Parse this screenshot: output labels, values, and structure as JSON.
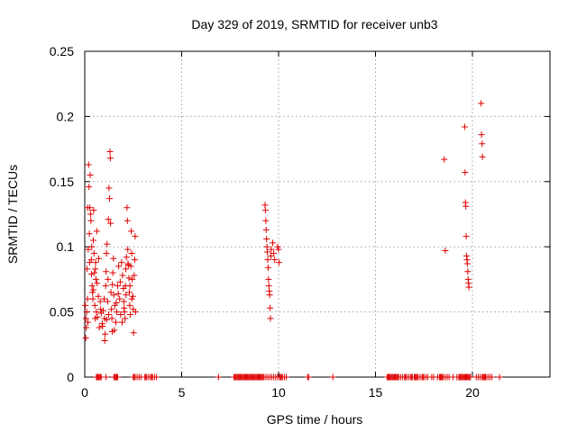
{
  "chart_data": {
    "type": "scatter",
    "title": "Day 329 of 2019, SRMTID for receiver unb3",
    "xlabel": "GPS time / hours",
    "ylabel": "SRMTID / TECUs",
    "xlim": [
      0,
      24
    ],
    "ylim": [
      0,
      0.25
    ],
    "xticks": [
      0,
      5,
      10,
      15,
      20
    ],
    "xtick_labels": [
      "0",
      "5",
      "10",
      "15",
      "20"
    ],
    "yticks": [
      0,
      0.05,
      0.1,
      0.15,
      0.2,
      0.25
    ],
    "ytick_labels": [
      "0",
      "0.05",
      "0.1",
      "0.15",
      "0.2",
      "0.25"
    ],
    "grid": true,
    "marker": "+",
    "color": "#e00000",
    "series": [
      {
        "name": "SRMTID",
        "points": [
          [
            0.03,
            0.055
          ],
          [
            0.05,
            0.03
          ],
          [
            0.06,
            0.045
          ],
          [
            0.08,
            0.038
          ],
          [
            0.1,
            0.05
          ],
          [
            0.12,
            0.083
          ],
          [
            0.14,
            0.06
          ],
          [
            0.16,
            0.042
          ],
          [
            0.18,
            0.098
          ],
          [
            0.2,
            0.163
          ],
          [
            0.22,
            0.146
          ],
          [
            0.24,
            0.11
          ],
          [
            0.26,
            0.13
          ],
          [
            0.28,
            0.155
          ],
          [
            0.3,
            0.125
          ],
          [
            0.32,
            0.12
          ],
          [
            0.34,
            0.09
          ],
          [
            0.36,
            0.1
          ],
          [
            0.38,
            0.07
          ],
          [
            0.4,
            0.065
          ],
          [
            0.42,
            0.06
          ],
          [
            0.44,
            0.105
          ],
          [
            0.46,
            0.128
          ],
          [
            0.48,
            0.095
          ],
          [
            0.5,
            0.08
          ],
          [
            0.52,
            0.055
          ],
          [
            0.54,
            0.045
          ],
          [
            0.56,
            0.088
          ],
          [
            0.58,
            0.075
          ],
          [
            0.6,
            0.05
          ],
          [
            0.62,
            0.112
          ],
          [
            0.64,
            0.072
          ],
          [
            0.7,
            0.062
          ],
          [
            0.75,
            0.038
          ],
          [
            0.8,
            0.058
          ],
          [
            0.85,
            0.049
          ],
          [
            0.9,
            0.041
          ],
          [
            0.95,
            0.051
          ],
          [
            1.0,
            0.06
          ],
          [
            1.02,
            0.045
          ],
          [
            1.05,
            0.033
          ],
          [
            1.08,
            0.07
          ],
          [
            1.1,
            0.081
          ],
          [
            1.12,
            0.095
          ],
          [
            1.15,
            0.102
          ],
          [
            1.18,
            0.058
          ],
          [
            1.2,
            0.075
          ],
          [
            1.22,
            0.121
          ],
          [
            1.25,
            0.145
          ],
          [
            1.28,
            0.137
          ],
          [
            1.3,
            0.173
          ],
          [
            1.32,
            0.168
          ],
          [
            1.35,
            0.065
          ],
          [
            1.38,
            0.052
          ],
          [
            1.4,
            0.045
          ],
          [
            1.42,
            0.035
          ],
          [
            1.45,
            0.08
          ],
          [
            1.48,
            0.091
          ],
          [
            1.5,
            0.063
          ],
          [
            1.55,
            0.055
          ],
          [
            1.6,
            0.042
          ],
          [
            1.65,
            0.05
          ],
          [
            1.7,
            0.07
          ],
          [
            1.75,
            0.085
          ],
          [
            1.8,
            0.06
          ],
          [
            1.85,
            0.048
          ],
          [
            1.9,
            0.088
          ],
          [
            1.95,
            0.078
          ],
          [
            2.0,
            0.068
          ],
          [
            2.02,
            0.058
          ],
          [
            2.05,
            0.05
          ],
          [
            2.08,
            0.045
          ],
          [
            2.1,
            0.07
          ],
          [
            2.12,
            0.083
          ],
          [
            2.15,
            0.092
          ],
          [
            2.18,
            0.13
          ],
          [
            2.2,
            0.12
          ],
          [
            2.22,
            0.098
          ],
          [
            2.25,
            0.086
          ],
          [
            2.28,
            0.076
          ],
          [
            2.3,
            0.065
          ],
          [
            2.32,
            0.055
          ],
          [
            2.35,
            0.048
          ],
          [
            2.38,
            0.085
          ],
          [
            2.4,
            0.112
          ],
          [
            2.42,
            0.095
          ],
          [
            2.45,
            0.075
          ],
          [
            2.48,
            0.062
          ],
          [
            2.5,
            0.052
          ],
          [
            2.52,
            0.034
          ],
          [
            2.55,
            0.078
          ],
          [
            2.58,
            0.09
          ],
          [
            2.6,
            0.108
          ],
          [
            2.62,
            0.05
          ],
          [
            0.15,
            0.13
          ],
          [
            0.25,
            0.088
          ],
          [
            0.35,
            0.079
          ],
          [
            0.45,
            0.067
          ],
          [
            0.55,
            0.083
          ],
          [
            0.65,
            0.046
          ],
          [
            0.72,
            0.091
          ],
          [
            0.82,
            0.052
          ],
          [
            0.92,
            0.039
          ],
          [
            1.03,
            0.028
          ],
          [
            1.13,
            0.044
          ],
          [
            1.23,
            0.048
          ],
          [
            1.33,
            0.118
          ],
          [
            1.43,
            0.071
          ],
          [
            1.53,
            0.036
          ],
          [
            1.63,
            0.057
          ],
          [
            1.73,
            0.064
          ],
          [
            1.83,
            0.073
          ],
          [
            1.93,
            0.042
          ],
          [
            2.03,
            0.053
          ],
          [
            2.13,
            0.063
          ],
          [
            2.23,
            0.087
          ],
          [
            2.33,
            0.07
          ],
          [
            2.43,
            0.06
          ],
          [
            9.3,
            0.132
          ],
          [
            9.32,
            0.128
          ],
          [
            9.34,
            0.12
          ],
          [
            9.36,
            0.113
          ],
          [
            9.38,
            0.106
          ],
          [
            9.4,
            0.1
          ],
          [
            9.42,
            0.096
          ],
          [
            9.44,
            0.09
          ],
          [
            9.46,
            0.084
          ],
          [
            9.48,
            0.075
          ],
          [
            9.5,
            0.07
          ],
          [
            9.52,
            0.066
          ],
          [
            9.54,
            0.063
          ],
          [
            9.56,
            0.053
          ],
          [
            9.58,
            0.045
          ],
          [
            9.6,
            0.093
          ],
          [
            9.62,
            0.098
          ],
          [
            9.7,
            0.103
          ],
          [
            9.75,
            0.095
          ],
          [
            9.8,
            0.09
          ],
          [
            9.95,
            0.1
          ],
          [
            10.0,
            0.098
          ],
          [
            10.02,
            0.088
          ],
          [
            18.55,
            0.167
          ],
          [
            18.6,
            0.097
          ],
          [
            19.6,
            0.192
          ],
          [
            19.62,
            0.157
          ],
          [
            19.64,
            0.134
          ],
          [
            19.66,
            0.131
          ],
          [
            19.68,
            0.108
          ],
          [
            19.7,
            0.093
          ],
          [
            19.72,
            0.09
          ],
          [
            19.74,
            0.087
          ],
          [
            19.76,
            0.081
          ],
          [
            19.78,
            0.075
          ],
          [
            19.8,
            0.072
          ],
          [
            19.82,
            0.069
          ],
          [
            20.45,
            0.21
          ],
          [
            20.47,
            0.186
          ],
          [
            20.5,
            0.179
          ],
          [
            20.52,
            0.169
          ]
        ],
        "zero_points": [
          0.6,
          0.65,
          0.7,
          0.75,
          0.8,
          0.85,
          1.1,
          1.5,
          1.55,
          1.6,
          1.65,
          1.7,
          2.5,
          2.55,
          2.6,
          2.7,
          2.8,
          2.9,
          3.1,
          3.15,
          3.2,
          3.3,
          3.4,
          3.45,
          3.5,
          3.6,
          3.7,
          6.9,
          7.7,
          7.75,
          7.8,
          7.85,
          7.9,
          7.95,
          8.0,
          8.05,
          8.1,
          8.15,
          8.2,
          8.25,
          8.3,
          8.35,
          8.4,
          8.45,
          8.5,
          8.55,
          8.6,
          8.65,
          8.7,
          8.75,
          8.8,
          8.85,
          8.9,
          8.95,
          9.0,
          9.05,
          9.1,
          9.15,
          9.2,
          9.25,
          9.35,
          9.45,
          9.55,
          9.65,
          9.75,
          9.85,
          9.95,
          10.05,
          10.1,
          10.15,
          10.2,
          10.3,
          10.4,
          11.5,
          11.55,
          12.8,
          15.6,
          15.65,
          15.7,
          15.75,
          15.8,
          15.85,
          15.9,
          15.95,
          16.0,
          16.05,
          16.1,
          16.15,
          16.2,
          16.3,
          16.4,
          16.5,
          16.55,
          16.6,
          16.7,
          16.8,
          16.85,
          16.9,
          17.0,
          17.05,
          17.1,
          17.15,
          17.2,
          17.3,
          17.4,
          17.45,
          17.5,
          17.6,
          17.7,
          17.9,
          18.0,
          18.2,
          18.3,
          18.35,
          18.4,
          18.45,
          18.5,
          18.6,
          18.7,
          18.8,
          19.0,
          19.2,
          19.3,
          19.35,
          19.4,
          19.45,
          19.5,
          19.55,
          19.6,
          19.65,
          19.7,
          19.75,
          19.8,
          19.85,
          19.9,
          20.2,
          20.3,
          20.4,
          20.5,
          20.55,
          20.6,
          20.65,
          20.7,
          20.8,
          20.9,
          21.0,
          21.4
        ]
      }
    ]
  }
}
